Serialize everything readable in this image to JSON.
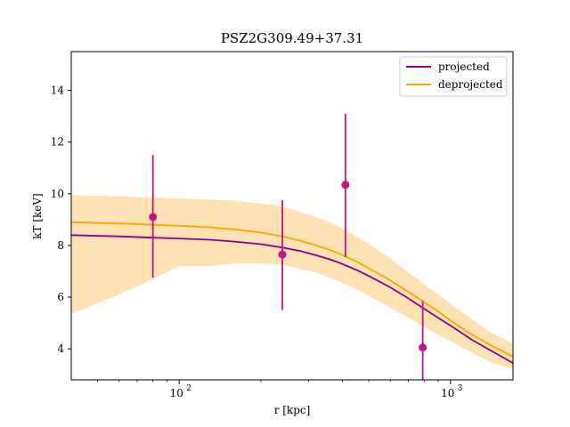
{
  "chart_data": {
    "type": "line",
    "title": "PSZ2G309.49+37.31",
    "xlabel": "r [kpc]",
    "ylabel": "kT [keV]",
    "xscale": "log",
    "xlim": [
      40,
      1700
    ],
    "ylim": [
      2.8,
      15.5
    ],
    "yticks": [
      4,
      6,
      8,
      10,
      12,
      14
    ],
    "xticks_major": [
      100,
      1000
    ],
    "xtick_labels": [
      "10",
      "10"
    ],
    "xtick_exponent_labels": [
      "2",
      "3"
    ],
    "legend": {
      "placement": "top-right",
      "entries": [
        "projected",
        "deprojected"
      ]
    },
    "grid": false,
    "colors": {
      "projected": "#8b008b",
      "deprojected": "#ffa500",
      "band": "#ffe0b0",
      "points": "#c71585"
    },
    "series": [
      {
        "name": "projected",
        "x": [
          40,
          60,
          80,
          100,
          130,
          160,
          200,
          240,
          280,
          320,
          360,
          400,
          450,
          500,
          600,
          700,
          800,
          900,
          1000,
          1200,
          1400,
          1700
        ],
        "y": [
          8.4,
          8.35,
          8.3,
          8.27,
          8.22,
          8.15,
          8.05,
          7.92,
          7.78,
          7.62,
          7.46,
          7.28,
          7.05,
          6.82,
          6.38,
          5.95,
          5.55,
          5.2,
          4.9,
          4.35,
          3.95,
          3.45
        ]
      },
      {
        "name": "deprojected",
        "x": [
          40,
          60,
          80,
          100,
          130,
          160,
          200,
          240,
          280,
          320,
          360,
          400,
          450,
          500,
          600,
          700,
          800,
          900,
          1000,
          1200,
          1400,
          1700
        ],
        "y": [
          8.9,
          8.85,
          8.8,
          8.76,
          8.7,
          8.62,
          8.5,
          8.35,
          8.18,
          8.0,
          7.82,
          7.63,
          7.38,
          7.12,
          6.65,
          6.2,
          5.8,
          5.45,
          5.1,
          4.55,
          4.15,
          3.7
        ],
        "band_upper": [
          9.95,
          9.9,
          9.85,
          9.82,
          9.77,
          9.73,
          9.62,
          9.5,
          9.3,
          9.1,
          8.88,
          8.65,
          8.35,
          8.05,
          7.5,
          6.95,
          6.5,
          6.1,
          5.75,
          5.15,
          4.65,
          4.2
        ],
        "band_lower": [
          5.35,
          6.1,
          6.7,
          7.2,
          7.2,
          7.3,
          7.3,
          7.25,
          7.1,
          6.95,
          6.75,
          6.55,
          6.3,
          6.05,
          5.6,
          5.2,
          4.85,
          4.55,
          4.3,
          3.85,
          3.5,
          3.2
        ]
      }
    ],
    "points": {
      "x": [
        80,
        240,
        410,
        790
      ],
      "y": [
        9.1,
        7.65,
        10.35,
        4.05
      ],
      "yerr_low": [
        6.75,
        5.5,
        7.55,
        2.8
      ],
      "yerr_high": [
        11.5,
        9.75,
        13.1,
        5.85
      ]
    }
  }
}
